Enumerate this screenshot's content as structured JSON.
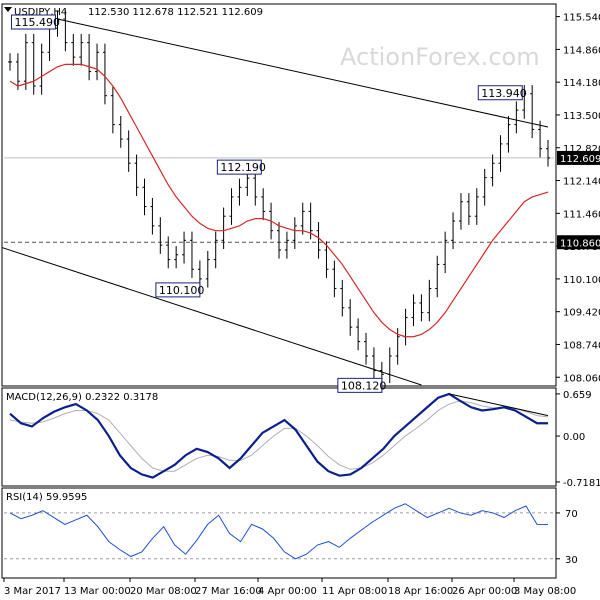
{
  "colors": {
    "background": "#ffffff",
    "candle": "#000000",
    "ma": "#d62728",
    "macd_line": "#0b1f8f",
    "macd_signal": "#b0b0b0",
    "rsi_line": "#1f4fd6",
    "trendline": "#000000",
    "price_tag_bg": "#000000",
    "price_tag_text": "#ffffff",
    "label_border": "#1a237e",
    "grid_dash": "#9e9e9e",
    "watermark": "#d9d9d9"
  },
  "header": {
    "symbol": "USDJPY,H4",
    "ohlc": "112.530 112.678 112.521 112.609",
    "icon": "triangle-down-icon"
  },
  "watermark": "ActionForex.com",
  "chart_data": [
    {
      "type": "line",
      "panel": "price",
      "series": [
        {
          "values": [
            114.6,
            114.2,
            115.0,
            114.1,
            114.8,
            115.3,
            115.49,
            115.0,
            114.7,
            115.0,
            114.4,
            114.8,
            113.9,
            113.3,
            113.0,
            112.5,
            112.0,
            111.6,
            111.2,
            110.8,
            110.5,
            110.6,
            110.9,
            110.3,
            110.1,
            110.5,
            110.9,
            111.4,
            111.8,
            112.0,
            112.19,
            111.8,
            111.5,
            111.1,
            110.7,
            110.9,
            111.2,
            111.5,
            111.1,
            110.7,
            110.3,
            109.9,
            109.5,
            109.1,
            108.8,
            108.5,
            108.2,
            108.12,
            108.5,
            108.9,
            109.3,
            109.6,
            109.4,
            109.9,
            110.4,
            110.9,
            111.3,
            111.7,
            111.4,
            111.8,
            112.2,
            112.5,
            112.9,
            113.3,
            113.6,
            113.94,
            113.2,
            112.8,
            112.609
          ]
        }
      ],
      "ma_values": [
        114.2,
        114.1,
        114.15,
        114.2,
        114.3,
        114.4,
        114.5,
        114.55,
        114.55,
        114.55,
        114.5,
        114.45,
        114.3,
        114.1,
        113.85,
        113.55,
        113.25,
        112.95,
        112.65,
        112.35,
        112.05,
        111.8,
        111.6,
        111.4,
        111.25,
        111.15,
        111.1,
        111.1,
        111.15,
        111.2,
        111.3,
        111.35,
        111.35,
        111.3,
        111.2,
        111.15,
        111.1,
        111.1,
        111.05,
        110.95,
        110.8,
        110.6,
        110.4,
        110.15,
        109.9,
        109.65,
        109.4,
        109.2,
        109.05,
        108.95,
        108.9,
        108.9,
        108.95,
        109.05,
        109.2,
        109.4,
        109.65,
        109.9,
        110.15,
        110.4,
        110.65,
        110.9,
        111.1,
        111.3,
        111.5,
        111.7,
        111.8,
        111.85,
        111.9
      ],
      "ylim": [
        107.92,
        115.76
      ],
      "y_ticks": [
        "115.540",
        "114.860",
        "114.180",
        "113.500",
        "112.820",
        "112.140",
        "111.460",
        "110.780",
        "110.100",
        "109.420",
        "108.740",
        "108.060"
      ],
      "current_price_label": "112.609",
      "reference_level_label": "110.860",
      "reference_level": 110.86,
      "annotations": [
        {
          "text": "115.490",
          "x": 6,
          "y": 115.49
        },
        {
          "text": "112.190",
          "x": 30,
          "y": 112.19
        },
        {
          "text": "110.100",
          "x": 24,
          "y": 110.1
        },
        {
          "text": "108.120",
          "x": 47,
          "y": 108.12
        },
        {
          "text": "113.940",
          "x": 65,
          "y": 113.94
        }
      ],
      "trendlines": [
        {
          "from": [
            6,
            115.49
          ],
          "to": [
            68,
            113.25
          ]
        },
        {
          "from": [
            -1,
            110.75
          ],
          "to": [
            52,
            107.9
          ]
        }
      ]
    },
    {
      "type": "line",
      "panel": "macd",
      "title": "MACD(12,26,9) 0.2322 0.3178",
      "series": [
        {
          "values": [
            0.35,
            0.2,
            0.15,
            0.28,
            0.38,
            0.45,
            0.5,
            0.4,
            0.25,
            0.0,
            -0.3,
            -0.5,
            -0.6,
            -0.65,
            -0.55,
            -0.45,
            -0.3,
            -0.2,
            -0.25,
            -0.35,
            -0.5,
            -0.35,
            -0.15,
            0.05,
            0.15,
            0.25,
            0.1,
            -0.15,
            -0.4,
            -0.55,
            -0.62,
            -0.6,
            -0.5,
            -0.35,
            -0.2,
            0.0,
            0.15,
            0.3,
            0.45,
            0.6,
            0.659,
            0.55,
            0.45,
            0.4,
            0.42,
            0.45,
            0.4,
            0.3,
            0.2,
            0.2
          ]
        },
        {
          "values": [
            0.25,
            0.22,
            0.2,
            0.22,
            0.28,
            0.35,
            0.4,
            0.4,
            0.35,
            0.25,
            0.05,
            -0.15,
            -0.35,
            -0.5,
            -0.55,
            -0.55,
            -0.45,
            -0.35,
            -0.3,
            -0.32,
            -0.38,
            -0.38,
            -0.3,
            -0.15,
            0.0,
            0.12,
            0.12,
            0.0,
            -0.15,
            -0.32,
            -0.45,
            -0.52,
            -0.5,
            -0.42,
            -0.3,
            -0.15,
            0.0,
            0.12,
            0.25,
            0.4,
            0.5,
            0.55,
            0.52,
            0.47,
            0.44,
            0.44,
            0.43,
            0.38,
            0.32,
            0.3
          ]
        }
      ],
      "ylim": [
        -0.75,
        0.72
      ],
      "y_ticks": [
        "0.659",
        "0.00",
        "-0.7181"
      ],
      "trendline": {
        "from": [
          40,
          0.659
        ],
        "to": [
          49,
          0.32
        ]
      }
    },
    {
      "type": "line",
      "panel": "rsi",
      "title": "RSI(14) 59.9595",
      "series": [
        {
          "values": [
            70,
            65,
            68,
            72,
            66,
            60,
            64,
            68,
            58,
            45,
            38,
            32,
            36,
            48,
            58,
            42,
            34,
            46,
            60,
            68,
            52,
            45,
            60,
            56,
            48,
            36,
            30,
            34,
            42,
            45,
            40,
            48,
            55,
            62,
            68,
            74,
            78,
            72,
            66,
            70,
            74,
            70,
            68,
            72,
            70,
            66,
            72,
            76,
            60,
            59.9595
          ]
        }
      ],
      "ylim": [
        15,
        90
      ],
      "y_ticks": [
        "70",
        "30"
      ],
      "levels": [
        70,
        30
      ]
    }
  ],
  "x_axis": {
    "labels": [
      "3 Mar 2017",
      "13 Mar 00:00",
      "20 Mar 08:00",
      "27 Mar 16:00",
      "4 Apr 00:00",
      "11 Apr 08:00",
      "18 Apr 16:00",
      "26 Apr 00:00",
      "3 May 08:00"
    ]
  }
}
